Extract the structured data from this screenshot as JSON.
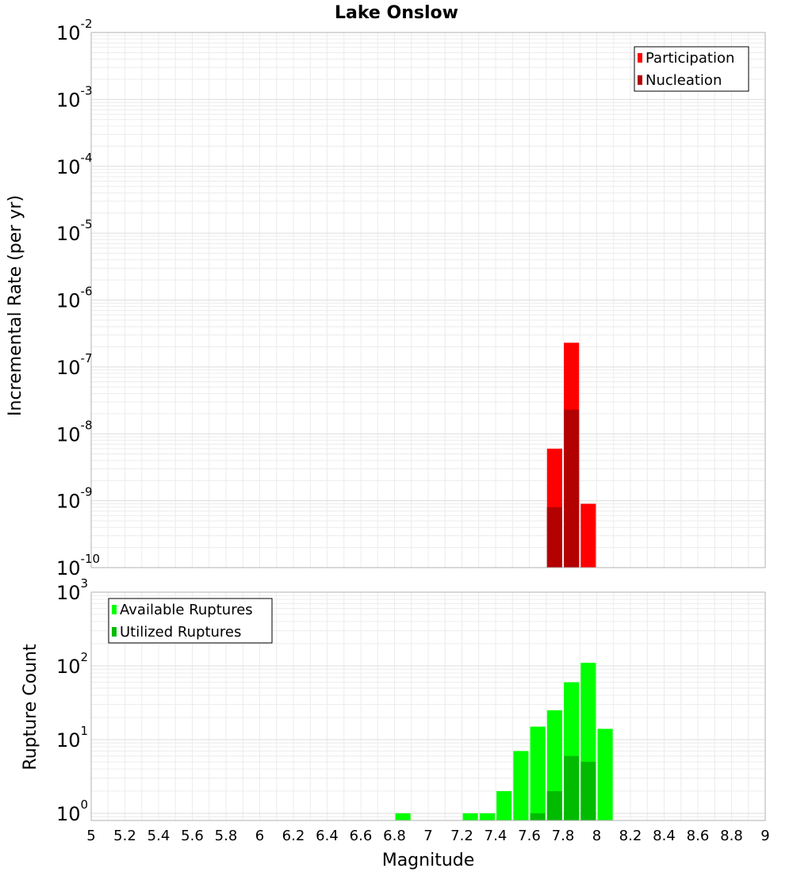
{
  "chart_data": [
    {
      "type": "bar",
      "title": "Lake Onslow",
      "ylabel": "Incremental Rate (per yr)",
      "xlabel": "",
      "y_scale": "log",
      "ylim": [
        1e-10,
        0.01
      ],
      "xlim": [
        5,
        9
      ],
      "y_tick_exponents": [
        "-10",
        "-9",
        "-8",
        "-7",
        "-6",
        "-5",
        "-4",
        "-3",
        "-2"
      ],
      "legend_position": "top-right",
      "colors": {
        "participation": "#ff0000",
        "nucleation": "#b30000"
      },
      "series": [
        {
          "name": "Participation",
          "x": [
            7.75,
            7.85,
            7.95
          ],
          "values": [
            6e-09,
            2.3e-07,
            9e-10
          ]
        },
        {
          "name": "Nucleation",
          "x": [
            7.75,
            7.85
          ],
          "values": [
            8e-10,
            2.3e-08
          ]
        }
      ],
      "grid": true
    },
    {
      "type": "bar",
      "ylabel": "Rupture Count",
      "xlabel": "Magnitude",
      "y_scale": "log",
      "ylim": [
        0.8,
        1000
      ],
      "xlim": [
        5,
        9
      ],
      "y_tick_exponents": [
        "0",
        "1",
        "2",
        "3"
      ],
      "legend_position": "top-left",
      "colors": {
        "available": "#00ff00",
        "utilized": "#00bb00"
      },
      "series": [
        {
          "name": "Available Ruptures",
          "x": [
            6.85,
            7.25,
            7.35,
            7.45,
            7.55,
            7.65,
            7.75,
            7.85,
            7.95,
            8.05
          ],
          "values": [
            1,
            1,
            1,
            2,
            7,
            15,
            25,
            60,
            110,
            14
          ]
        },
        {
          "name": "Utilized Ruptures",
          "x": [
            7.65,
            7.75,
            7.85,
            7.95
          ],
          "values": [
            1,
            2,
            6,
            5
          ]
        }
      ],
      "x_ticks": [
        "5",
        "5.2",
        "5.4",
        "5.6",
        "5.8",
        "6",
        "6.2",
        "6.4",
        "6.6",
        "6.8",
        "7",
        "7.2",
        "7.4",
        "7.6",
        "7.8",
        "8",
        "8.2",
        "8.4",
        "8.6",
        "8.8",
        "9"
      ],
      "grid": true
    }
  ]
}
